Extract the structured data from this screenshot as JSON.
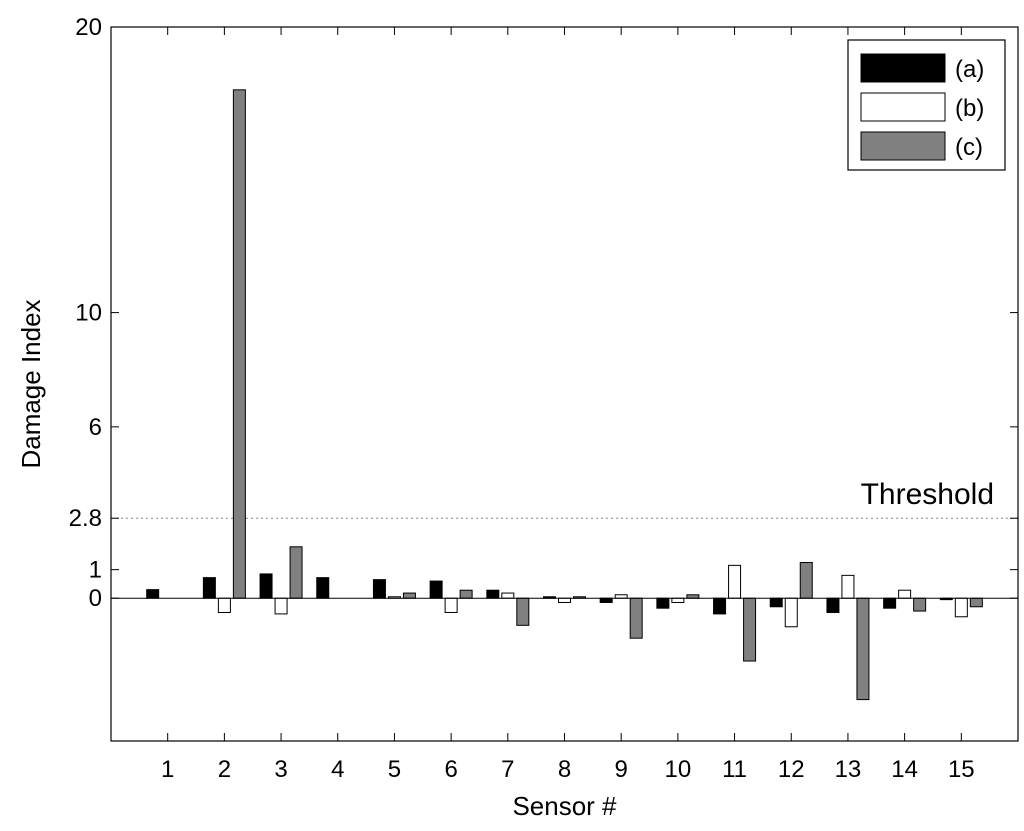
{
  "chart_data": {
    "type": "bar",
    "xlabel": "Sensor #",
    "ylabel": "Damage Index",
    "categories": [
      "1",
      "2",
      "3",
      "4",
      "5",
      "6",
      "7",
      "8",
      "9",
      "10",
      "11",
      "12",
      "13",
      "14",
      "15"
    ],
    "ylim": [
      -5,
      20
    ],
    "yticks": [
      0,
      1,
      2.8,
      6,
      10,
      20
    ],
    "ytick_labels": [
      "0",
      "1",
      "2.8",
      "6",
      "10",
      "20"
    ],
    "threshold": {
      "value": 2.8,
      "label": "Threshold",
      "style": "dotted"
    },
    "legend_position": "top-right",
    "series": [
      {
        "name": "(a)",
        "color": "#000000",
        "values": [
          0.3,
          0.72,
          0.85,
          0.72,
          0.65,
          0.6,
          0.28,
          0.05,
          -0.15,
          -0.35,
          -0.55,
          -0.3,
          -0.5,
          -0.35,
          -0.05
        ]
      },
      {
        "name": "(b)",
        "color": "#ffffff",
        "values": [
          0.0,
          -0.5,
          -0.55,
          0.0,
          0.05,
          -0.5,
          0.18,
          -0.15,
          0.12,
          -0.15,
          1.15,
          -1.0,
          0.8,
          0.28,
          -0.65
        ]
      },
      {
        "name": "(c)",
        "color": "#808080",
        "values": [
          0.0,
          17.8,
          1.8,
          0.0,
          0.18,
          0.28,
          -0.95,
          0.05,
          -1.4,
          0.12,
          -2.2,
          1.25,
          -3.55,
          -0.45,
          -0.3
        ]
      }
    ]
  }
}
